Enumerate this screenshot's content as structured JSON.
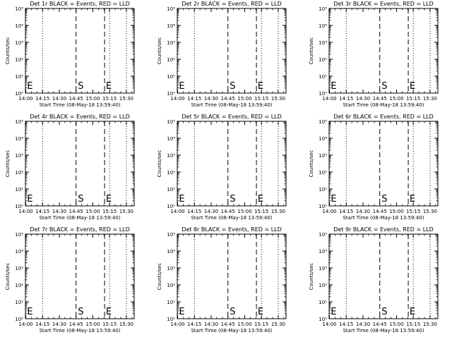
{
  "chart_data": [
    {
      "type": "line",
      "title": "Det 1r BLACK = Events, RED = LLD",
      "xlabel": "Start Time (08-May-18 13:59:40)",
      "ylabel": "Counts/sec",
      "x_ticks": [
        "14:00",
        "14:15",
        "14:30",
        "14:45",
        "15:00",
        "15:15",
        "15:30"
      ],
      "y_ticks": [
        "10⁰",
        "10¹",
        "10²",
        "10³",
        "10⁴",
        "10⁵"
      ],
      "y_scale": "log",
      "xlim": [
        "13:59:40",
        "15:37"
      ],
      "ylim": [
        1,
        100000
      ],
      "dotted_lines_at": [
        "14:15",
        "15:15",
        "15:30"
      ],
      "dashed_lines_at": [
        "14:45",
        "15:10:30"
      ],
      "markers": [
        {
          "label": "E",
          "at": "14:00:30"
        },
        {
          "label": "S",
          "at": "14:46"
        },
        {
          "label": "E",
          "at": "15:11"
        }
      ],
      "series": []
    },
    {
      "type": "line",
      "title": "Det 2r BLACK = Events, RED = LLD",
      "xlabel": "Start Time (08-May-18 13:59:40)",
      "ylabel": "Counts/sec",
      "x_ticks": [
        "14:00",
        "14:15",
        "14:30",
        "14:45",
        "15:00",
        "15:15",
        "15:30"
      ],
      "y_ticks": [
        "10⁰",
        "10¹",
        "10²",
        "10³",
        "10⁴",
        "10⁵"
      ],
      "y_scale": "log",
      "xlim": [
        "13:59:40",
        "15:37"
      ],
      "ylim": [
        1,
        100000
      ],
      "dotted_lines_at": [
        "14:15",
        "15:15",
        "15:30"
      ],
      "dashed_lines_at": [
        "14:45",
        "15:10:30"
      ],
      "markers": [
        {
          "label": "E",
          "at": "14:00:30"
        },
        {
          "label": "S",
          "at": "14:46"
        },
        {
          "label": "E",
          "at": "15:11"
        }
      ],
      "series": []
    },
    {
      "type": "line",
      "title": "Det 3r BLACK = Events, RED = LLD",
      "xlabel": "Start Time (08-May-18 13:59:40)",
      "ylabel": "Counts/sec",
      "x_ticks": [
        "14:00",
        "14:15",
        "14:30",
        "14:45",
        "15:00",
        "15:15",
        "15:30"
      ],
      "y_ticks": [
        "10⁰",
        "10¹",
        "10²",
        "10³",
        "10⁴",
        "10⁵"
      ],
      "y_scale": "log",
      "xlim": [
        "13:59:40",
        "15:37"
      ],
      "ylim": [
        1,
        100000
      ],
      "dotted_lines_at": [
        "14:15",
        "15:15",
        "15:30"
      ],
      "dashed_lines_at": [
        "14:45",
        "15:10:30"
      ],
      "markers": [
        {
          "label": "E",
          "at": "14:00:30"
        },
        {
          "label": "S",
          "at": "14:46"
        },
        {
          "label": "E",
          "at": "15:11"
        }
      ],
      "series": []
    },
    {
      "type": "line",
      "title": "Det 4r BLACK = Events, RED = LLD",
      "xlabel": "Start Time (08-May-18 13:59:40)",
      "ylabel": "Counts/sec",
      "x_ticks": [
        "14:00",
        "14:15",
        "14:30",
        "14:45",
        "15:00",
        "15:15",
        "15:30"
      ],
      "y_ticks": [
        "10⁰",
        "10¹",
        "10²",
        "10³",
        "10⁴",
        "10⁵"
      ],
      "y_scale": "log",
      "xlim": [
        "13:59:40",
        "15:37"
      ],
      "ylim": [
        1,
        100000
      ],
      "dotted_lines_at": [
        "14:15",
        "15:15",
        "15:30"
      ],
      "dashed_lines_at": [
        "14:45",
        "15:10:30"
      ],
      "markers": [
        {
          "label": "E",
          "at": "14:00:30"
        },
        {
          "label": "S",
          "at": "14:46"
        },
        {
          "label": "E",
          "at": "15:11"
        }
      ],
      "series": []
    },
    {
      "type": "line",
      "title": "Det 5r BLACK = Events, RED = LLD",
      "xlabel": "Start Time (08-May-18 13:59:40)",
      "ylabel": "Counts/sec",
      "x_ticks": [
        "14:00",
        "14:15",
        "14:30",
        "14:45",
        "15:00",
        "15:15",
        "15:30"
      ],
      "y_ticks": [
        "10⁰",
        "10¹",
        "10²",
        "10³",
        "10⁴",
        "10⁵"
      ],
      "y_scale": "log",
      "xlim": [
        "13:59:40",
        "15:37"
      ],
      "ylim": [
        1,
        100000
      ],
      "dotted_lines_at": [
        "14:15",
        "15:15",
        "15:30"
      ],
      "dashed_lines_at": [
        "14:45",
        "15:10:30"
      ],
      "markers": [
        {
          "label": "E",
          "at": "14:00:30"
        },
        {
          "label": "S",
          "at": "14:46"
        },
        {
          "label": "E",
          "at": "15:11"
        }
      ],
      "series": []
    },
    {
      "type": "line",
      "title": "Det 6r BLACK = Events, RED = LLD",
      "xlabel": "Start Time (08-May-18 13:59:40)",
      "ylabel": "Counts/sec",
      "x_ticks": [
        "14:00",
        "14:15",
        "14:30",
        "14:45",
        "15:00",
        "15:15",
        "15:30"
      ],
      "y_ticks": [
        "10⁰",
        "10¹",
        "10²",
        "10³",
        "10⁴",
        "10⁵"
      ],
      "y_scale": "log",
      "xlim": [
        "13:59:40",
        "15:37"
      ],
      "ylim": [
        1,
        100000
      ],
      "dotted_lines_at": [
        "14:15",
        "15:15",
        "15:30"
      ],
      "dashed_lines_at": [
        "14:45",
        "15:10:30"
      ],
      "markers": [
        {
          "label": "E",
          "at": "14:00:30"
        },
        {
          "label": "S",
          "at": "14:46"
        },
        {
          "label": "E",
          "at": "15:11"
        }
      ],
      "series": []
    },
    {
      "type": "line",
      "title": "Det 7r BLACK = Events, RED = LLD",
      "xlabel": "Start Time (08-May-18 13:59:40)",
      "ylabel": "Counts/sec",
      "x_ticks": [
        "14:00",
        "14:15",
        "14:30",
        "14:45",
        "15:00",
        "15:15",
        "15:30"
      ],
      "y_ticks": [
        "10⁰",
        "10¹",
        "10²",
        "10³",
        "10⁴",
        "10⁵"
      ],
      "y_scale": "log",
      "xlim": [
        "13:59:40",
        "15:37"
      ],
      "ylim": [
        1,
        100000
      ],
      "dotted_lines_at": [
        "14:15",
        "15:15",
        "15:30"
      ],
      "dashed_lines_at": [
        "14:45",
        "15:10:30"
      ],
      "markers": [
        {
          "label": "E",
          "at": "14:00:30"
        },
        {
          "label": "S",
          "at": "14:46"
        },
        {
          "label": "E",
          "at": "15:11"
        }
      ],
      "series": []
    },
    {
      "type": "line",
      "title": "Det 8r BLACK = Events, RED = LLD",
      "xlabel": "Start Time (08-May-18 13:59:40)",
      "ylabel": "Counts/sec",
      "x_ticks": [
        "14:00",
        "14:15",
        "14:30",
        "14:45",
        "15:00",
        "15:15",
        "15:30"
      ],
      "y_ticks": [
        "10⁰",
        "10¹",
        "10²",
        "10³",
        "10⁴",
        "10⁵"
      ],
      "y_scale": "log",
      "xlim": [
        "13:59:40",
        "15:37"
      ],
      "ylim": [
        1,
        100000
      ],
      "dotted_lines_at": [
        "14:15",
        "15:15",
        "15:30"
      ],
      "dashed_lines_at": [
        "14:45",
        "15:10:30"
      ],
      "markers": [
        {
          "label": "E",
          "at": "14:00:30"
        },
        {
          "label": "S",
          "at": "14:46"
        },
        {
          "label": "E",
          "at": "15:11"
        }
      ],
      "series": []
    },
    {
      "type": "line",
      "title": "Det 9r BLACK = Events, RED = LLD",
      "xlabel": "Start Time (08-May-18 13:59:40)",
      "ylabel": "Counts/sec",
      "x_ticks": [
        "14:00",
        "14:15",
        "14:30",
        "14:45",
        "15:00",
        "15:15",
        "15:30"
      ],
      "y_ticks": [
        "10⁰",
        "10¹",
        "10²",
        "10³",
        "10⁴",
        "10⁵"
      ],
      "y_scale": "log",
      "xlim": [
        "13:59:40",
        "15:37"
      ],
      "ylim": [
        1,
        100000
      ],
      "dotted_lines_at": [
        "14:15",
        "15:15",
        "15:30"
      ],
      "dashed_lines_at": [
        "14:45",
        "15:10:30"
      ],
      "markers": [
        {
          "label": "E",
          "at": "14:00:30"
        },
        {
          "label": "S",
          "at": "14:46"
        },
        {
          "label": "E",
          "at": "15:11"
        }
      ],
      "series": []
    }
  ],
  "colors": {
    "background": "#ffffff",
    "foreground": "#000000",
    "events": "#000000",
    "lld": "#ff0000"
  }
}
